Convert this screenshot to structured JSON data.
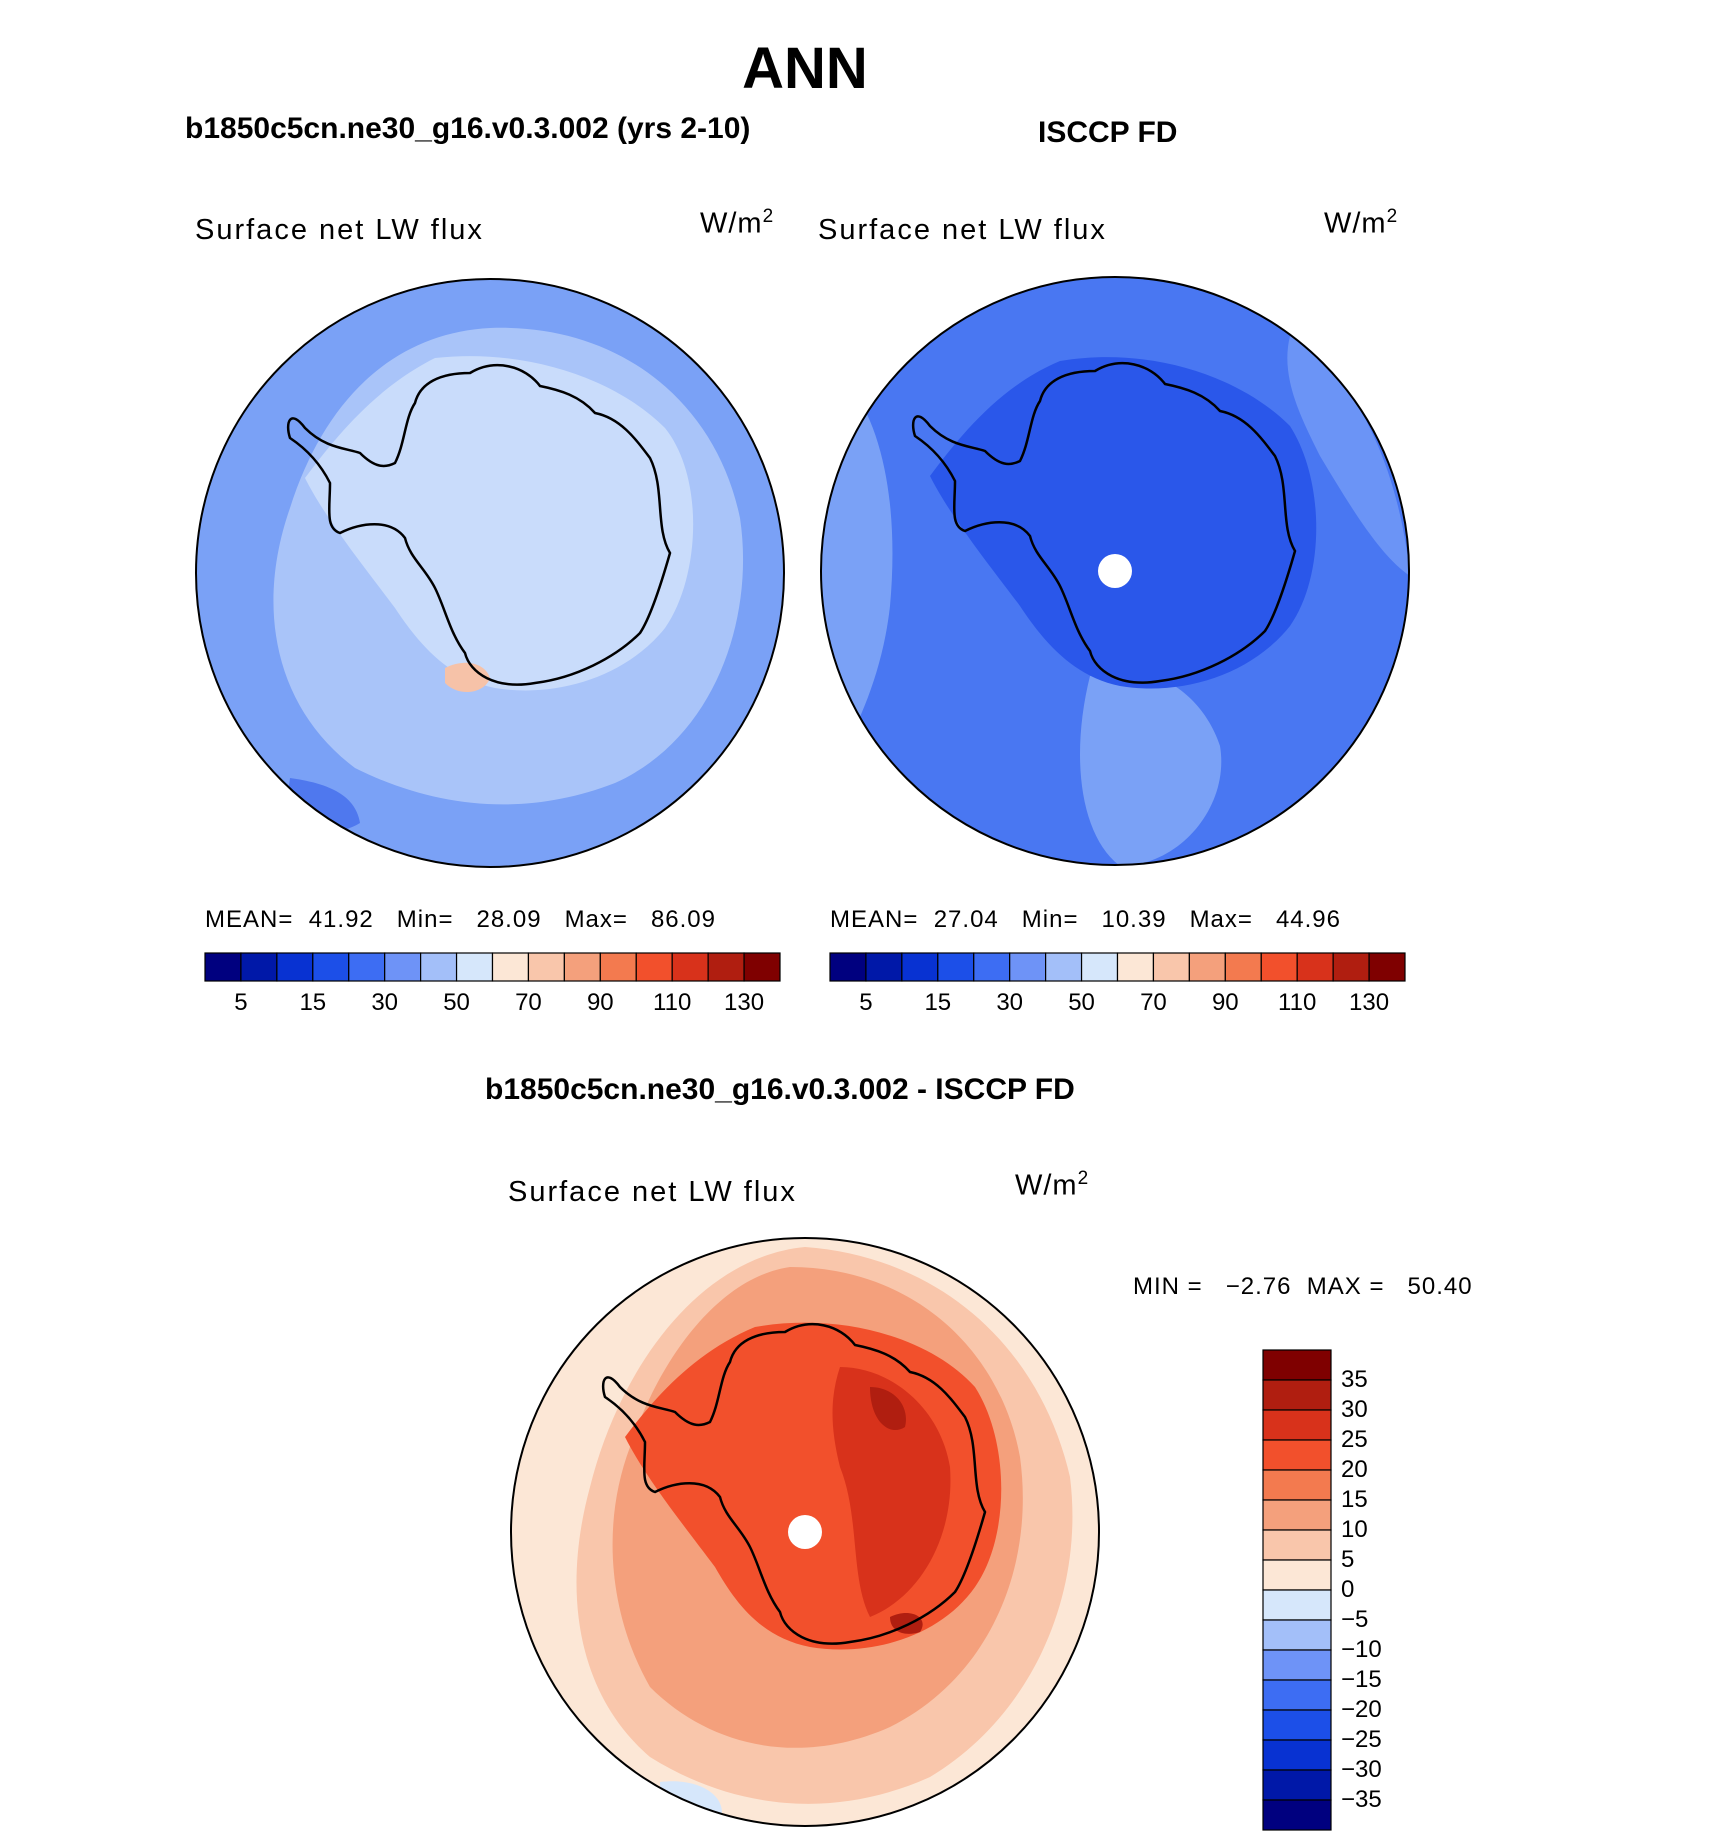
{
  "figure": {
    "season": "ANN",
    "model_title": "b1850c5cn.ne30_g16.v0.3.002 (yrs 2-10)",
    "obs_title": "ISCCP FD",
    "diff_title": "b1850c5cn.ne30_g16.v0.3.002 - ISCCP FD"
  },
  "panels": {
    "model": {
      "variable": "Surface net LW flux",
      "units": "W/m",
      "units_sup": "2",
      "mean_label": "MEAN=",
      "mean": "41.92",
      "min_label": "Min=",
      "min": "28.09",
      "max_label": "Max=",
      "max": "86.09"
    },
    "obs": {
      "variable": "Surface net LW flux",
      "units": "W/m",
      "units_sup": "2",
      "mean_label": "MEAN=",
      "mean": "27.04",
      "min_label": "Min=",
      "min": "10.39",
      "max_label": "Max=",
      "max": "44.96"
    },
    "diff": {
      "variable": "Surface net LW flux",
      "units": "W/m",
      "units_sup": "2",
      "min_label": "MIN =",
      "min": "−2.76",
      "max_label": "MAX =",
      "max": "50.40"
    }
  },
  "colorbars": {
    "abs": {
      "colors": [
        "#00007f",
        "#0018a8",
        "#0832d2",
        "#1c4fe8",
        "#3d6df3",
        "#6e93f7",
        "#a3bff9",
        "#d6e7fb",
        "#fce7d6",
        "#f9c6ab",
        "#f4a07c",
        "#f37a4f",
        "#f2502c",
        "#d8321b",
        "#b01e10",
        "#7f0000"
      ],
      "tick_labels": [
        "5",
        "15",
        "30",
        "50",
        "70",
        "90",
        "110",
        "130"
      ]
    },
    "diff": {
      "colors": [
        "#00007f",
        "#0018a8",
        "#0832d2",
        "#1c4fe8",
        "#3d6df3",
        "#6e93f7",
        "#a3bff9",
        "#d6e7fb",
        "#fce7d6",
        "#f9c6ab",
        "#f4a07c",
        "#f37a4f",
        "#f2502c",
        "#d8321b",
        "#b01e10",
        "#7f0000"
      ],
      "tick_labels": [
        "−35",
        "−30",
        "−25",
        "−20",
        "−15",
        "−10",
        "−5",
        "0",
        "5",
        "10",
        "15",
        "20",
        "25",
        "30",
        "35"
      ]
    }
  }
}
